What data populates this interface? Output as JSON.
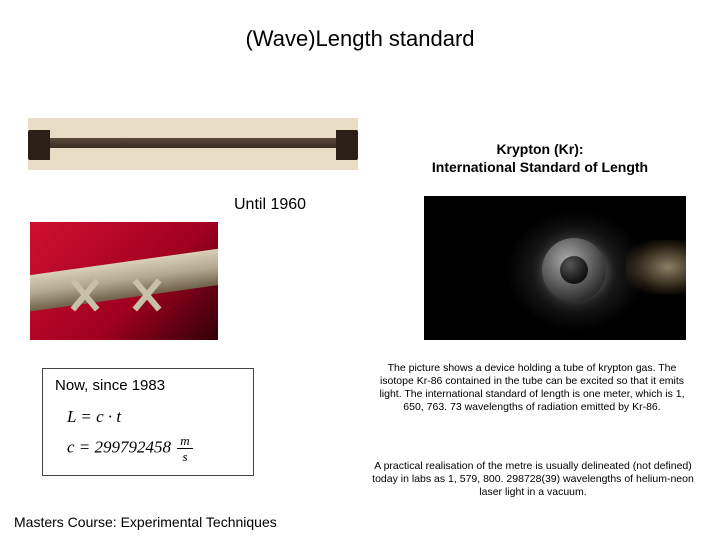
{
  "title": "(Wave)Length standard",
  "krypton_heading_line1": "Krypton (Kr):",
  "krypton_heading_line2": "International Standard of Length",
  "until_label": "Until 1960",
  "now_label": "Now, since 1983",
  "equation1": "L = c · t",
  "equation2_lhs": "c = 299792458",
  "equation2_unit_num": "m",
  "equation2_unit_den": "s",
  "description1": "The picture shows a device holding a tube of krypton gas. The isotope Kr-86 contained in the tube can be excited so that it emits light. The international standard of length is one meter, which is 1, 650, 763. 73 wavelengths of radiation emitted by Kr-86.",
  "description2": "A practical realisation of the metre is usually delineated (not defined) today in labs as 1, 579, 800. 298728(39) wavelengths of helium-neon laser light in a vacuum.",
  "footer": "Masters Course: Experimental Techniques",
  "colors": {
    "background": "#ffffff",
    "text": "#000000",
    "xsection_bg_start": "#d01030",
    "xsection_bg_end": "#300008",
    "krypton_bg": "#000000",
    "box_border": "#444444"
  }
}
